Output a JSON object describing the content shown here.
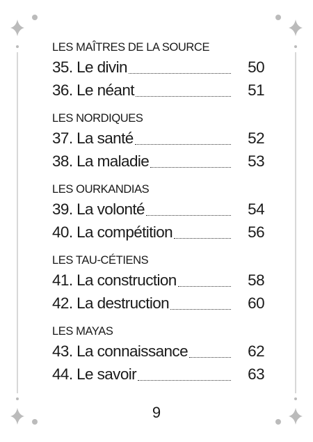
{
  "sections": [
    {
      "heading": "LES MAÎTRES DE LA SOURCE",
      "entries": [
        {
          "label": "35. Le divin",
          "page": 50
        },
        {
          "label": "36. Le néant",
          "page": 51
        }
      ]
    },
    {
      "heading": "LES NORDIQUES",
      "entries": [
        {
          "label": "37. La santé",
          "page": 52
        },
        {
          "label": "38. La maladie",
          "page": 53
        }
      ]
    },
    {
      "heading": "LES OURKANDIAS",
      "entries": [
        {
          "label": "39. La volonté",
          "page": 54
        },
        {
          "label": "40. La compétition",
          "page": 56
        }
      ]
    },
    {
      "heading": "LES TAU-CÉTIENS",
      "entries": [
        {
          "label": "41. La construction",
          "page": 58
        },
        {
          "label": "42. La destruction",
          "page": 60
        }
      ]
    },
    {
      "heading": "LES MAYAS",
      "entries": [
        {
          "label": "43. La connaissance",
          "page": 62
        },
        {
          "label": "44. Le savoir",
          "page": 63
        }
      ]
    }
  ],
  "footer": {
    "page_number": 9
  }
}
